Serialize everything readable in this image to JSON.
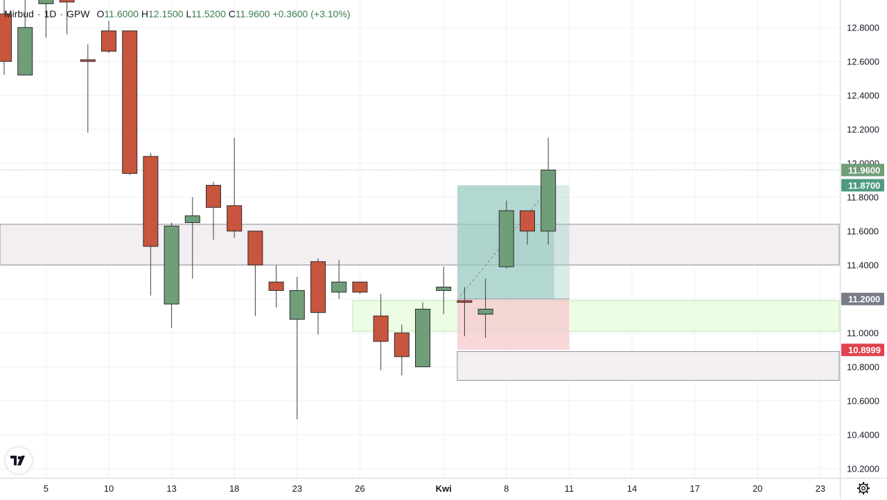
{
  "legend": {
    "symbol": "Mirbud",
    "interval": "1D",
    "exchange": "GPW",
    "open_label": "O",
    "open": "11.6000",
    "high_label": "H",
    "high": "12.1500",
    "low_label": "L",
    "low": "11.5200",
    "close_label": "C",
    "close": "11.9600",
    "change": "+0.3600 (+3.10%)"
  },
  "colors": {
    "up": "#6f9e78",
    "down": "#c8553d",
    "grid": "#eef0f3",
    "zone": "#f3eef1",
    "green_zone": "#eafde0",
    "target": "#93c9bd",
    "stop": "#f6c9cf"
  },
  "icons": {
    "logo": "tradingview-logo-icon",
    "settings": "gear-icon"
  },
  "chart_data": {
    "type": "candlestick",
    "title": "",
    "ylim": [
      10.1,
      12.98
    ],
    "y_ticks": [
      10.2,
      10.4,
      10.6,
      10.8,
      11.0,
      11.2,
      11.4,
      11.6,
      11.8,
      12.0,
      12.2,
      12.4,
      12.6,
      12.8
    ],
    "y_tick_labels": [
      "10.2000",
      "10.4000",
      "10.6000",
      "10.8000",
      "11.0000",
      "11.2000",
      "11.4000",
      "11.6000",
      "11.8000",
      "12.0000",
      "12.2000",
      "12.4000",
      "12.6000",
      "12.8000"
    ],
    "x_ticks": [
      {
        "index": 2,
        "label": "5"
      },
      {
        "index": 5,
        "label": "10"
      },
      {
        "index": 8,
        "label": "13"
      },
      {
        "index": 11,
        "label": "18"
      },
      {
        "index": 14,
        "label": "23"
      },
      {
        "index": 17,
        "label": "26"
      },
      {
        "index": 21,
        "label": "Kwi",
        "bold": true
      },
      {
        "index": 24,
        "label": "8"
      },
      {
        "index": 27,
        "label": "11"
      },
      {
        "index": 30,
        "label": "14"
      },
      {
        "index": 33,
        "label": "17"
      },
      {
        "index": 36,
        "label": "20"
      },
      {
        "index": 39,
        "label": "23"
      }
    ],
    "candles": [
      {
        "i": 0,
        "o": 12.88,
        "h": 12.98,
        "l": 12.52,
        "c": 12.6
      },
      {
        "i": 1,
        "o": 12.52,
        "h": 12.98,
        "l": 12.52,
        "c": 12.8
      },
      {
        "i": 2,
        "o": 12.94,
        "h": 12.98,
        "l": 12.74,
        "c": 12.98
      },
      {
        "i": 3,
        "o": 12.98,
        "h": 12.98,
        "l": 12.76,
        "c": 12.95
      },
      {
        "i": 4,
        "o": 12.61,
        "h": 12.7,
        "l": 12.18,
        "c": 12.6
      },
      {
        "i": 5,
        "o": 12.78,
        "h": 12.84,
        "l": 12.65,
        "c": 12.66
      },
      {
        "i": 6,
        "o": 12.78,
        "h": 12.78,
        "l": 11.93,
        "c": 11.94
      },
      {
        "i": 7,
        "o": 12.04,
        "h": 12.06,
        "l": 11.22,
        "c": 11.51
      },
      {
        "i": 8,
        "o": 11.17,
        "h": 11.65,
        "l": 11.03,
        "c": 11.63
      },
      {
        "i": 9,
        "o": 11.65,
        "h": 11.8,
        "l": 11.32,
        "c": 11.69
      },
      {
        "i": 10,
        "o": 11.87,
        "h": 11.89,
        "l": 11.55,
        "c": 11.74
      },
      {
        "i": 11,
        "o": 11.75,
        "h": 12.15,
        "l": 11.56,
        "c": 11.6
      },
      {
        "i": 12,
        "o": 11.6,
        "h": 11.6,
        "l": 11.1,
        "c": 11.4
      },
      {
        "i": 13,
        "o": 11.3,
        "h": 11.4,
        "l": 11.15,
        "c": 11.25
      },
      {
        "i": 14,
        "o": 11.08,
        "h": 11.33,
        "l": 10.49,
        "c": 11.25
      },
      {
        "i": 15,
        "o": 11.42,
        "h": 11.44,
        "l": 10.99,
        "c": 11.12
      },
      {
        "i": 16,
        "o": 11.24,
        "h": 11.43,
        "l": 11.2,
        "c": 11.3
      },
      {
        "i": 17,
        "o": 11.3,
        "h": 11.3,
        "l": 11.23,
        "c": 11.24
      },
      {
        "i": 18,
        "o": 11.1,
        "h": 11.23,
        "l": 10.78,
        "c": 10.95
      },
      {
        "i": 19,
        "o": 11.0,
        "h": 11.05,
        "l": 10.75,
        "c": 10.86
      },
      {
        "i": 20,
        "o": 10.8,
        "h": 11.18,
        "l": 10.8,
        "c": 11.14
      },
      {
        "i": 21,
        "o": 11.25,
        "h": 11.39,
        "l": 11.11,
        "c": 11.27
      },
      {
        "i": 22,
        "o": 11.19,
        "h": 11.27,
        "l": 10.98,
        "c": 11.18
      },
      {
        "i": 23,
        "o": 11.11,
        "h": 11.32,
        "l": 10.97,
        "c": 11.14
      },
      {
        "i": 24,
        "o": 11.39,
        "h": 11.78,
        "l": 11.38,
        "c": 11.72
      },
      {
        "i": 25,
        "o": 11.72,
        "h": 11.72,
        "l": 11.52,
        "c": 11.6
      },
      {
        "i": 26,
        "o": 11.6,
        "h": 12.15,
        "l": 11.52,
        "c": 11.96
      }
    ],
    "zones": [
      {
        "kind": "resistance-box",
        "from_index": -1,
        "to_index": 42,
        "top": 11.64,
        "bottom": 11.4
      },
      {
        "kind": "support-box-green",
        "from_index": 17,
        "to_index": 42,
        "top": 11.19,
        "bottom": 11.01
      },
      {
        "kind": "support-box",
        "from_index": 22,
        "to_index": 42,
        "top": 10.89,
        "bottom": 10.72
      }
    ],
    "position": {
      "type": "long",
      "from_index": 22,
      "to_index": 27,
      "entry": 11.2,
      "target": 11.87,
      "stop": 10.8999
    },
    "last_price": 11.96,
    "price_labels": [
      {
        "value": 11.96,
        "text": "11.9600",
        "color": "#6f9e78"
      },
      {
        "value": 11.87,
        "text": "11.8700",
        "color": "#4f9a84"
      },
      {
        "value": 11.2,
        "text": "11.2000",
        "color": "#787b86"
      },
      {
        "value": 10.8999,
        "text": "10.8999",
        "color": "#e0424f"
      }
    ]
  }
}
